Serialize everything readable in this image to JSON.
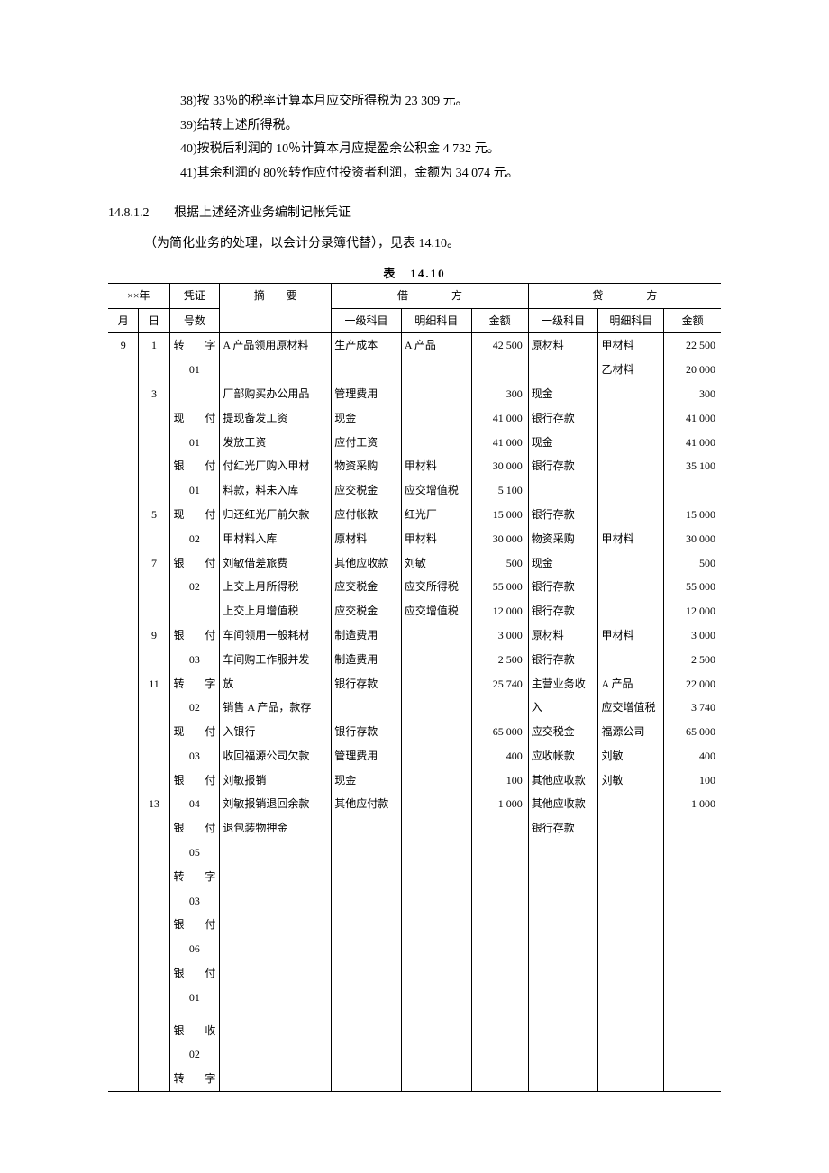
{
  "preamble": [
    "38)按 33％的税率计算本月应交所得税为 23 309 元。",
    "39)结转上述所得税。",
    "40)按税后利润的 10％计算本月应提盈余公积金 4 732 元。",
    "41)其余利润的 80％转作应付投资者利润，金额为 34 074 元。"
  ],
  "section_number": "14.8.1.2",
  "section_title": "根据上述经济业务编制记帐凭证",
  "note": "（为简化业务的处理，以会计分录簿代替），见表 14.10。",
  "table_caption": "表　14.10",
  "headers": {
    "year": "××年",
    "voucher": "凭证",
    "summary": "摘　　要",
    "debit": "借　　　　方",
    "credit": "贷　　　　方",
    "month": "月",
    "day": "日",
    "vno": "号数",
    "sub1": "一级科目",
    "sub2": "明细科目",
    "amt": "金额"
  },
  "rows": [
    {
      "m": "9",
      "d": "1",
      "v": "转　字",
      "s": "A 产品领用原材料",
      "da": "生产成本",
      "db": "A 产品",
      "dc": "42 500",
      "ca": "原材料",
      "cb": "甲材料",
      "cc": "22 500"
    },
    {
      "m": "",
      "d": "",
      "v": "01",
      "s": "",
      "da": "",
      "db": "",
      "dc": "",
      "ca": "",
      "cb": "乙材料",
      "cc": "20 000"
    },
    {
      "m": "",
      "d": "3",
      "v": "",
      "s": "厂部购买办公用品",
      "da": "管理费用",
      "db": "",
      "dc": "300",
      "ca": "现金",
      "cb": "",
      "cc": "300"
    },
    {
      "m": "",
      "d": "",
      "v": "现　付",
      "s": "提现备发工资",
      "da": "现金",
      "db": "",
      "dc": "41 000",
      "ca": "银行存款",
      "cb": "",
      "cc": "41 000"
    },
    {
      "m": "",
      "d": "",
      "v": "01",
      "s": "发放工资",
      "da": "应付工资",
      "db": "",
      "dc": "41 000",
      "ca": "现金",
      "cb": "",
      "cc": "41 000"
    },
    {
      "m": "",
      "d": "",
      "v": "银　付",
      "s": "付红光厂购入甲材",
      "da": "物资采购",
      "db": "甲材料",
      "dc": "30 000",
      "ca": "银行存款",
      "cb": "",
      "cc": "35 100"
    },
    {
      "m": "",
      "d": "",
      "v": "01",
      "s": "料款，料未入库",
      "da": "应交税金",
      "db": "应交增值税",
      "dc": "5 100",
      "ca": "",
      "cb": "",
      "cc": ""
    },
    {
      "m": "",
      "d": "5",
      "v": "现　付",
      "s": "归还红光厂前欠款",
      "da": "应付帐款",
      "db": "红光厂",
      "dc": "15 000",
      "ca": "银行存款",
      "cb": "",
      "cc": "15 000"
    },
    {
      "m": "",
      "d": "",
      "v": "02",
      "s": "甲材料入库",
      "da": "原材料",
      "db": "甲材料",
      "dc": "30 000",
      "ca": "物资采购",
      "cb": "甲材料",
      "cc": "30 000"
    },
    {
      "m": "",
      "d": "7",
      "v": "银　付",
      "s": "刘敏借差旅费",
      "da": "其他应收款",
      "db": "刘敏",
      "dc": "500",
      "ca": "现金",
      "cb": "",
      "cc": "500"
    },
    {
      "m": "",
      "d": "",
      "v": "02",
      "s": "上交上月所得税",
      "da": "应交税金",
      "db": "应交所得税",
      "dc": "55 000",
      "ca": "银行存款",
      "cb": "",
      "cc": "55 000"
    },
    {
      "m": "",
      "d": "",
      "v": "",
      "s": "上交上月增值税",
      "da": "应交税金",
      "db": "应交增值税",
      "dc": "12 000",
      "ca": "银行存款",
      "cb": "",
      "cc": "12 000"
    },
    {
      "m": "",
      "d": "9",
      "v": "银　付",
      "s": "车间领用一般耗材",
      "da": "制造费用",
      "db": "",
      "dc": "3 000",
      "ca": "原材料",
      "cb": "甲材料",
      "cc": "3 000"
    },
    {
      "m": "",
      "d": "",
      "v": "03",
      "s": "车间购工作服并发",
      "da": "制造费用",
      "db": "",
      "dc": "2 500",
      "ca": "银行存款",
      "cb": "",
      "cc": "2 500"
    },
    {
      "m": "",
      "d": "11",
      "v": "转　字",
      "s": "放",
      "da": "银行存款",
      "db": "",
      "dc": "25 740",
      "ca": "主营业务收",
      "cb": "A 产品",
      "cc": "22 000"
    },
    {
      "m": "",
      "d": "",
      "v": "02",
      "s": "销售 A 产品，款存",
      "da": "",
      "db": "",
      "dc": "",
      "ca": "入",
      "cb": "应交增值税",
      "cc": "3 740"
    },
    {
      "m": "",
      "d": "",
      "v": "现　付",
      "s": "入银行",
      "da": "银行存款",
      "db": "",
      "dc": "65 000",
      "ca": "应交税金",
      "cb": "福源公司",
      "cc": "65 000"
    },
    {
      "m": "",
      "d": "",
      "v": "03",
      "s": "收回福源公司欠款",
      "da": "管理费用",
      "db": "",
      "dc": "400",
      "ca": "应收帐款",
      "cb": "刘敏",
      "cc": "400"
    },
    {
      "m": "",
      "d": "",
      "v": "银　付",
      "s": "刘敏报销",
      "da": "现金",
      "db": "",
      "dc": "100",
      "ca": "其他应收款",
      "cb": "刘敏",
      "cc": "100"
    },
    {
      "m": "",
      "d": "13",
      "v": "04",
      "s": "刘敏报销退回余款",
      "da": "其他应付款",
      "db": "",
      "dc": "1 000",
      "ca": "其他应收款",
      "cb": "",
      "cc": "1 000"
    },
    {
      "m": "",
      "d": "",
      "v": "银　付",
      "s": "退包装物押金",
      "da": "",
      "db": "",
      "dc": "",
      "ca": "银行存款",
      "cb": "",
      "cc": ""
    },
    {
      "m": "",
      "d": "",
      "v": "05",
      "s": "",
      "da": "",
      "db": "",
      "dc": "",
      "ca": "",
      "cb": "",
      "cc": ""
    },
    {
      "m": "",
      "d": "",
      "v": "转　字",
      "s": "",
      "da": "",
      "db": "",
      "dc": "",
      "ca": "",
      "cb": "",
      "cc": ""
    },
    {
      "m": "",
      "d": "",
      "v": "03",
      "s": "",
      "da": "",
      "db": "",
      "dc": "",
      "ca": "",
      "cb": "",
      "cc": ""
    },
    {
      "m": "",
      "d": "",
      "v": "银　付",
      "s": "",
      "da": "",
      "db": "",
      "dc": "",
      "ca": "",
      "cb": "",
      "cc": ""
    },
    {
      "m": "",
      "d": "",
      "v": "06",
      "s": "",
      "da": "",
      "db": "",
      "dc": "",
      "ca": "",
      "cb": "",
      "cc": ""
    },
    {
      "m": "",
      "d": "",
      "v": "银　付",
      "s": "",
      "da": "",
      "db": "",
      "dc": "",
      "ca": "",
      "cb": "",
      "cc": ""
    },
    {
      "m": "",
      "d": "",
      "v": "01",
      "s": "",
      "da": "",
      "db": "",
      "dc": "",
      "ca": "",
      "cb": "",
      "cc": ""
    },
    {
      "m": "",
      "d": "",
      "v": "",
      "s": "",
      "da": "",
      "db": "",
      "dc": "",
      "ca": "",
      "cb": "",
      "cc": ""
    },
    {
      "m": "",
      "d": "",
      "v": "银　收",
      "s": "",
      "da": "",
      "db": "",
      "dc": "",
      "ca": "",
      "cb": "",
      "cc": ""
    },
    {
      "m": "",
      "d": "",
      "v": "02",
      "s": "",
      "da": "",
      "db": "",
      "dc": "",
      "ca": "",
      "cb": "",
      "cc": ""
    },
    {
      "m": "",
      "d": "",
      "v": "转　字",
      "s": "",
      "da": "",
      "db": "",
      "dc": "",
      "ca": "",
      "cb": "",
      "cc": ""
    }
  ]
}
